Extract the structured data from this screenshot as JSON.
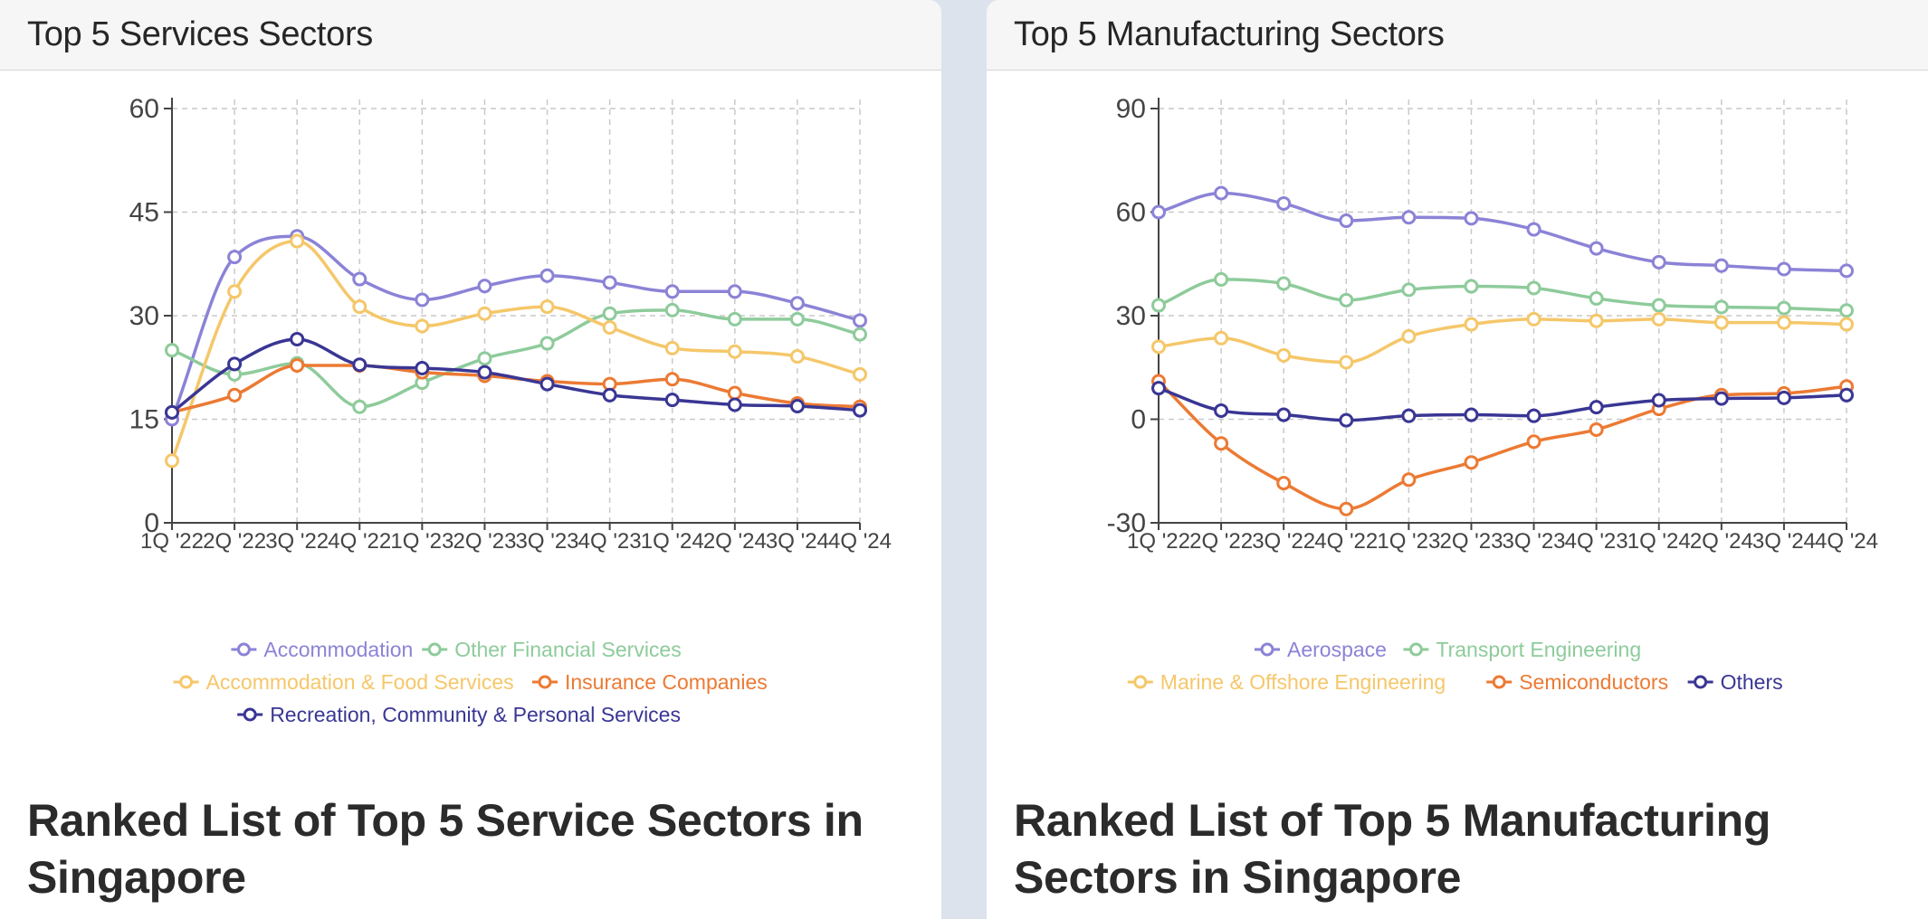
{
  "panels": {
    "services": {
      "title": "Top 5 Services Sectors",
      "heading": "Ranked List of Top 5 Service Sectors in Singapore"
    },
    "manufacturing": {
      "title": "Top 5 Manufacturing Sectors",
      "heading": "Ranked List of Top 5 Manufacturing Sectors in Singapore"
    }
  },
  "chart_data": [
    {
      "type": "line",
      "categories": [
        "1Q '22",
        "2Q '22",
        "3Q '22",
        "4Q '22",
        "1Q '23",
        "2Q '23",
        "3Q '23",
        "4Q '23",
        "1Q '24",
        "2Q '24",
        "3Q '24",
        "4Q '24"
      ],
      "ylim": [
        0,
        60
      ],
      "yticks": [
        0,
        15,
        30,
        45,
        60
      ],
      "grid": true,
      "legend_position": "bottom",
      "series": [
        {
          "name": "Accommodation",
          "color": "#8b83d6",
          "values": [
            15,
            38.5,
            41.5,
            35.3,
            32.3,
            34.3,
            35.8,
            34.8,
            33.5,
            33.5,
            31.8,
            29.3
          ]
        },
        {
          "name": "Other Financial Services",
          "color": "#8ecb9b",
          "values": [
            25,
            21.5,
            23.1,
            16.8,
            20.3,
            23.8,
            26,
            30.3,
            30.8,
            29.5,
            29.5,
            27.3
          ]
        },
        {
          "name": "Accommodation & Food Services",
          "color": "#f5c76a",
          "values": [
            9,
            33.5,
            40.8,
            31.3,
            28.5,
            30.3,
            31.3,
            28.3,
            25.3,
            24.8,
            24.1,
            21.5
          ]
        },
        {
          "name": "Insurance Companies",
          "color": "#ec7a33",
          "values": [
            16,
            18.5,
            22.8,
            22.8,
            21.8,
            21.3,
            20.5,
            20.1,
            20.8,
            18.8,
            17.3,
            16.8
          ]
        },
        {
          "name": "Recreation, Community & Personal Services",
          "color": "#3a3694",
          "values": [
            16,
            23,
            26.6,
            22.9,
            22.4,
            21.8,
            20.1,
            18.5,
            17.8,
            17.1,
            16.9,
            16.3
          ]
        }
      ]
    },
    {
      "type": "line",
      "categories": [
        "1Q '22",
        "2Q '22",
        "3Q '22",
        "4Q '22",
        "1Q '23",
        "2Q '23",
        "3Q '23",
        "4Q '23",
        "1Q '24",
        "2Q '24",
        "3Q '24",
        "4Q '24"
      ],
      "ylim": [
        -30,
        90
      ],
      "yticks": [
        -30,
        0,
        30,
        60,
        90
      ],
      "grid": true,
      "legend_position": "bottom",
      "series": [
        {
          "name": "Aerospace",
          "color": "#8b83d6",
          "values": [
            60,
            65.5,
            62.5,
            57.5,
            58.5,
            58.2,
            55,
            49.5,
            45.5,
            44.5,
            43.5,
            43
          ]
        },
        {
          "name": "Transport Engineering",
          "color": "#8ecb9b",
          "values": [
            33,
            40.5,
            39.3,
            34.5,
            37.5,
            38.5,
            38,
            35,
            33,
            32.5,
            32.2,
            31.5
          ]
        },
        {
          "name": "Marine & Offshore Engineering",
          "color": "#f5c76a",
          "values": [
            21,
            23.5,
            18.5,
            16.5,
            24,
            27.5,
            29,
            28.5,
            29,
            28,
            28,
            27.5
          ]
        },
        {
          "name": "Semiconductors",
          "color": "#ec7a33",
          "values": [
            11,
            -7,
            -18.5,
            -26,
            -17.5,
            -12.5,
            -6.5,
            -3,
            3,
            7,
            7.5,
            9.5
          ]
        },
        {
          "name": "Others",
          "color": "#3a3694",
          "values": [
            9,
            2.5,
            1.3,
            -0.3,
            1,
            1.3,
            1,
            3.5,
            5.5,
            6,
            6.2,
            7
          ]
        }
      ]
    }
  ]
}
